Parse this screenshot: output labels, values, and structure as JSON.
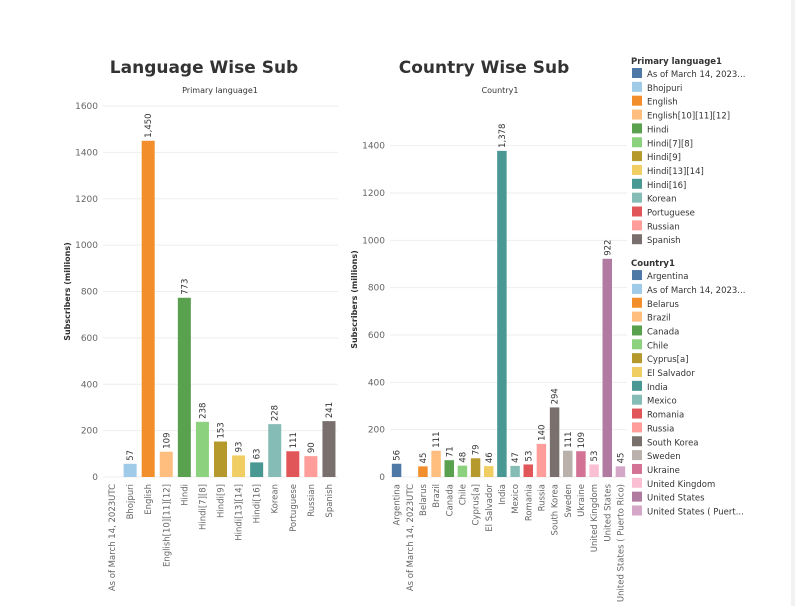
{
  "chart_data": [
    {
      "type": "bar",
      "title": "Language Wise Sub",
      "subtitle": "Primary language1",
      "ylabel": "Subscribers (millions)",
      "ylim": [
        0,
        1600
      ],
      "yticks": [
        0,
        200,
        400,
        600,
        800,
        1000,
        1200,
        1400,
        1600
      ],
      "categories": [
        "As of March 14, 2023UTC",
        "Bhojpuri",
        "English",
        "English[10][11][12]",
        "Hindi",
        "Hindi[7][8]",
        "Hindi[9]",
        "Hindi[13][14]",
        "Hindi[16]",
        "Korean",
        "Portuguese",
        "Russian",
        "Spanish"
      ],
      "values": [
        null,
        57,
        1450,
        109,
        773,
        238,
        153,
        93,
        63,
        228,
        111,
        90,
        241
      ],
      "value_labels": [
        "",
        "57",
        "1,450",
        "109",
        "773",
        "238",
        "153",
        "93",
        "63",
        "228",
        "111",
        "90",
        "241"
      ],
      "colors": [
        "#4e79a7",
        "#a0cbe8",
        "#f28e2b",
        "#ffbe7d",
        "#59a14f",
        "#8cd17d",
        "#b6992d",
        "#f1ce63",
        "#499894",
        "#86bcb6",
        "#e15759",
        "#ff9d9a",
        "#79706e"
      ]
    },
    {
      "type": "bar",
      "title": "Country Wise Sub",
      "subtitle": "Country1",
      "ylabel": "Subscribers (millions)",
      "ylim": [
        0,
        1500
      ],
      "yticks": [
        0,
        200,
        400,
        600,
        800,
        1000,
        1200,
        1400
      ],
      "categories": [
        "Argentina",
        "As of March 14, 2023UTC",
        "Belarus",
        "Brazil",
        "Canada",
        "Chile",
        "Cyprus[a]",
        "El Salvador",
        "India",
        "Mexico",
        "Romania",
        "Russia",
        "South Korea",
        "Sweden",
        "Ukraine",
        "United Kingdom",
        "United States",
        "United States ( Puerto Rico)"
      ],
      "values": [
        56,
        null,
        45,
        111,
        71,
        48,
        79,
        46,
        1378,
        47,
        53,
        140,
        294,
        111,
        109,
        53,
        922,
        45
      ],
      "value_labels": [
        "56",
        "",
        "45",
        "111",
        "71",
        "48",
        "79",
        "46",
        "1,378",
        "47",
        "53",
        "140",
        "294",
        "111",
        "109",
        "53",
        "922",
        "45"
      ],
      "colors": [
        "#4e79a7",
        "#a0cbe8",
        "#f28e2b",
        "#ffbe7d",
        "#59a14f",
        "#8cd17d",
        "#b6992d",
        "#f1ce63",
        "#499894",
        "#86bcb6",
        "#e15759",
        "#ff9d9a",
        "#79706e",
        "#bab0ac",
        "#d37295",
        "#fabfd2",
        "#b07aa1",
        "#d4a6c8"
      ]
    }
  ],
  "legends": [
    {
      "title": "Primary language1",
      "items": [
        {
          "label": "As of March 14, 2023...",
          "color": "#4e79a7"
        },
        {
          "label": "Bhojpuri",
          "color": "#a0cbe8"
        },
        {
          "label": "English",
          "color": "#f28e2b"
        },
        {
          "label": "English[10][11][12]",
          "color": "#ffbe7d"
        },
        {
          "label": "Hindi",
          "color": "#59a14f"
        },
        {
          "label": "Hindi[7][8]",
          "color": "#8cd17d"
        },
        {
          "label": "Hindi[9]",
          "color": "#b6992d"
        },
        {
          "label": "Hindi[13][14]",
          "color": "#f1ce63"
        },
        {
          "label": "Hindi[16]",
          "color": "#499894"
        },
        {
          "label": "Korean",
          "color": "#86bcb6"
        },
        {
          "label": "Portuguese",
          "color": "#e15759"
        },
        {
          "label": "Russian",
          "color": "#ff9d9a"
        },
        {
          "label": "Spanish",
          "color": "#79706e"
        }
      ]
    },
    {
      "title": "Country1",
      "items": [
        {
          "label": "Argentina",
          "color": "#4e79a7"
        },
        {
          "label": "As of March 14, 2023...",
          "color": "#a0cbe8"
        },
        {
          "label": "Belarus",
          "color": "#f28e2b"
        },
        {
          "label": "Brazil",
          "color": "#ffbe7d"
        },
        {
          "label": "Canada",
          "color": "#59a14f"
        },
        {
          "label": "Chile",
          "color": "#8cd17d"
        },
        {
          "label": "Cyprus[a]",
          "color": "#b6992d"
        },
        {
          "label": "El Salvador",
          "color": "#f1ce63"
        },
        {
          "label": "India",
          "color": "#499894"
        },
        {
          "label": "Mexico",
          "color": "#86bcb6"
        },
        {
          "label": "Romania",
          "color": "#e15759"
        },
        {
          "label": "Russia",
          "color": "#ff9d9a"
        },
        {
          "label": "South Korea",
          "color": "#79706e"
        },
        {
          "label": "Sweden",
          "color": "#bab0ac"
        },
        {
          "label": "Ukraine",
          "color": "#d37295"
        },
        {
          "label": "United Kingdom",
          "color": "#fabfd2"
        },
        {
          "label": "United States",
          "color": "#b07aa1"
        },
        {
          "label": "United States ( Puert...",
          "color": "#d4a6c8"
        }
      ]
    }
  ]
}
